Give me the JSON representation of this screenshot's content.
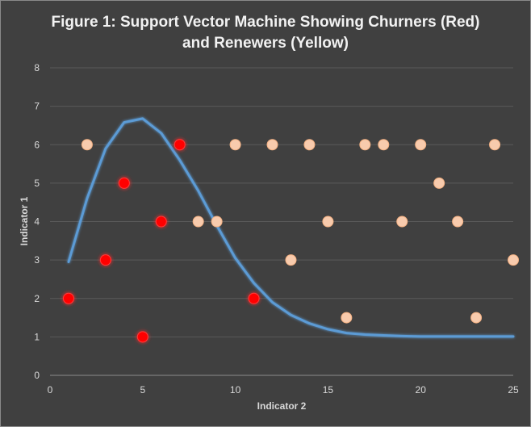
{
  "chart_data": {
    "type": "scatter",
    "title_line1": "Figure 1: Support Vector Machine Showing Churners (Red)",
    "title_line2": "and Renewers (Yellow)",
    "xlabel": "Indicator 2",
    "ylabel": "Indicator 1",
    "xlim": [
      0,
      25
    ],
    "ylim": [
      0,
      8
    ],
    "x_ticks": [
      0,
      5,
      10,
      15,
      20,
      25
    ],
    "y_ticks": [
      0,
      1,
      2,
      3,
      4,
      5,
      6,
      7,
      8
    ],
    "grid": "horizontal",
    "series": [
      {
        "color": "#ff0000",
        "points": [
          [
            1,
            2
          ],
          [
            3,
            3
          ],
          [
            4,
            5
          ],
          [
            5,
            1
          ],
          [
            6,
            4
          ],
          [
            7,
            6
          ],
          [
            11,
            2
          ]
        ]
      },
      {
        "color": "#f8cbad",
        "points": [
          [
            2,
            6
          ],
          [
            8,
            4
          ],
          [
            9,
            4
          ],
          [
            10,
            6
          ],
          [
            12,
            6
          ],
          [
            13,
            3
          ],
          [
            14,
            6
          ],
          [
            15,
            4
          ],
          [
            16,
            1.5
          ],
          [
            17,
            6
          ],
          [
            18,
            6
          ],
          [
            19,
            4
          ],
          [
            20,
            6
          ],
          [
            21,
            5
          ],
          [
            22,
            4
          ],
          [
            23,
            1.5
          ],
          [
            24,
            6
          ],
          [
            25,
            3
          ]
        ]
      }
    ],
    "boundary": {
      "color": "#5b9bd5",
      "points": [
        [
          1,
          2.95
        ],
        [
          2,
          4.6
        ],
        [
          3,
          5.9
        ],
        [
          4,
          6.58
        ],
        [
          5,
          6.68
        ],
        [
          6,
          6.3
        ],
        [
          7,
          5.6
        ],
        [
          8,
          4.8
        ],
        [
          9,
          3.9
        ],
        [
          10,
          3.05
        ],
        [
          11,
          2.4
        ],
        [
          12,
          1.9
        ],
        [
          13,
          1.57
        ],
        [
          14,
          1.35
        ],
        [
          15,
          1.2
        ],
        [
          16,
          1.1
        ],
        [
          17,
          1.06
        ],
        [
          18,
          1.04
        ],
        [
          19,
          1.02
        ],
        [
          20,
          1.01
        ],
        [
          21,
          1.01
        ],
        [
          22,
          1.01
        ],
        [
          23,
          1.01
        ],
        [
          24,
          1.01
        ],
        [
          25,
          1.01
        ]
      ]
    }
  }
}
